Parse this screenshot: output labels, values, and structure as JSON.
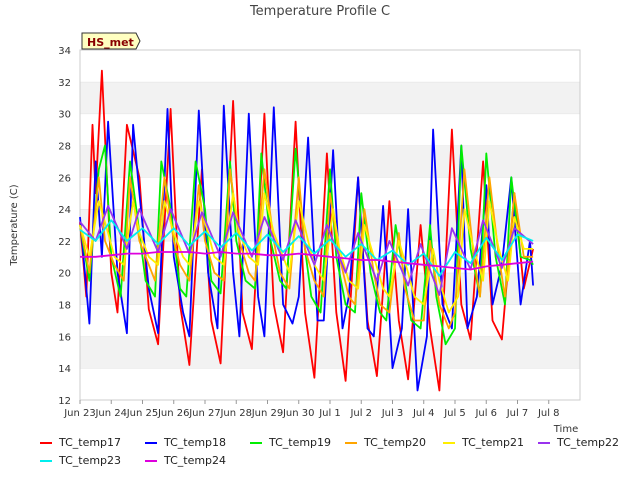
{
  "chart_data": {
    "type": "line",
    "title": "Temperature Profile C",
    "ylabel": "Temperature (C)",
    "xlabel": "Time",
    "badge": "HS_met",
    "ylim": [
      12,
      34
    ],
    "yticks": [
      12,
      14,
      16,
      18,
      20,
      22,
      24,
      26,
      28,
      30,
      32,
      34
    ],
    "xlim": [
      0,
      16
    ],
    "xtick_labels": [
      "Jun 23",
      "Jun 24",
      "Jun 25",
      "Jun 26",
      "Jun 27",
      "Jun 28",
      "Jun 29",
      "Jun 30",
      "Jul 1",
      "Jul 2",
      "Jul 3",
      "Jul 4",
      "Jul 5",
      "Jul 6",
      "Jul 7",
      "Jul 8"
    ],
    "grid": "horizontal bands",
    "legend_position": "bottom",
    "series": [
      {
        "name": "TC_temp17",
        "color": "#ff0000",
        "x": [
          0.0,
          0.2,
          0.4,
          0.5,
          0.7,
          1.0,
          1.2,
          1.5,
          1.9,
          2.2,
          2.5,
          2.9,
          3.2,
          3.5,
          3.9,
          4.2,
          4.5,
          4.9,
          5.2,
          5.5,
          5.9,
          6.2,
          6.5,
          6.9,
          7.2,
          7.5,
          7.9,
          8.2,
          8.5,
          8.9,
          9.2,
          9.5,
          9.9,
          10.2,
          10.5,
          10.9,
          11.2,
          11.5,
          11.9,
          12.2,
          12.5,
          12.9,
          13.2,
          13.5,
          13.9,
          14.2,
          14.5
        ],
        "values": [
          23.2,
          18.5,
          29.3,
          25,
          32.7,
          20,
          17.5,
          29.3,
          26,
          17.7,
          15.5,
          30.3,
          18,
          14.2,
          26.5,
          17,
          14.3,
          30.8,
          17.5,
          15.2,
          30,
          18,
          15,
          29.5,
          17.5,
          13.4,
          27.5,
          17.5,
          13.2,
          26,
          17,
          13.5,
          24.5,
          17,
          13.3,
          23,
          16.5,
          12.6,
          29,
          18,
          15.8,
          27,
          17,
          15.8,
          25,
          19,
          21.5
        ]
      },
      {
        "name": "TC_temp18",
        "color": "#0000ff",
        "x": [
          0.0,
          0.3,
          0.5,
          0.7,
          0.9,
          1.2,
          1.5,
          1.7,
          1.9,
          2.2,
          2.5,
          2.8,
          3.0,
          3.3,
          3.5,
          3.8,
          4.1,
          4.4,
          4.6,
          4.9,
          5.1,
          5.4,
          5.7,
          5.9,
          6.2,
          6.5,
          6.8,
          7.0,
          7.3,
          7.6,
          7.8,
          8.1,
          8.4,
          8.6,
          8.9,
          9.2,
          9.4,
          9.7,
          10.0,
          10.3,
          10.5,
          10.8,
          11.1,
          11.3,
          11.6,
          11.9,
          12.2,
          12.4,
          12.7,
          13.0,
          13.2,
          13.5,
          13.8,
          14.1,
          14.4,
          14.5
        ],
        "values": [
          23.5,
          16.8,
          27,
          21,
          29.5,
          20,
          16.2,
          29.3,
          25,
          19,
          16.2,
          30.3,
          21,
          17.5,
          16,
          30.2,
          20,
          16.5,
          30.5,
          20,
          16,
          30,
          18.5,
          16,
          30.4,
          18,
          16.8,
          18.5,
          28.5,
          17,
          17,
          27.7,
          16.5,
          18.5,
          26,
          16.5,
          16,
          24.2,
          14,
          16.5,
          24,
          12.6,
          16,
          29,
          18,
          16.5,
          28,
          16.5,
          18.5,
          25.5,
          18,
          20.5,
          26,
          18,
          22,
          19.2
        ]
      },
      {
        "name": "TC_temp19",
        "color": "#00ee00",
        "x": [
          0.0,
          0.3,
          0.6,
          0.8,
          1.0,
          1.3,
          1.6,
          1.8,
          2.1,
          2.4,
          2.6,
          2.9,
          3.2,
          3.4,
          3.7,
          4.0,
          4.2,
          4.5,
          4.8,
          5.0,
          5.3,
          5.6,
          5.8,
          6.1,
          6.4,
          6.6,
          6.9,
          7.2,
          7.4,
          7.7,
          8.0,
          8.2,
          8.5,
          8.8,
          9.0,
          9.3,
          9.6,
          9.8,
          10.1,
          10.4,
          10.6,
          10.9,
          11.2,
          11.4,
          11.7,
          12.0,
          12.2,
          12.5,
          12.8,
          13.0,
          13.3,
          13.6,
          13.8,
          14.1,
          14.4,
          14.5
        ],
        "values": [
          23,
          19.5,
          26.5,
          28,
          21,
          18.5,
          27,
          24,
          19.5,
          18.5,
          27,
          24,
          19,
          18.5,
          27,
          24,
          19.5,
          18.7,
          27,
          22,
          19.5,
          19,
          27.5,
          22,
          19.5,
          19,
          27.8,
          21.5,
          18.5,
          17.5,
          26.5,
          21,
          18,
          17.5,
          25,
          20,
          17.5,
          17,
          23,
          19.5,
          17,
          16.5,
          23,
          18.5,
          15.5,
          16.5,
          28,
          21.5,
          18.5,
          27.5,
          21,
          18,
          26,
          21,
          20.8,
          20.5
        ]
      },
      {
        "name": "TC_temp20",
        "color": "#ffa500",
        "x": [
          0.0,
          0.3,
          0.6,
          0.8,
          1.1,
          1.4,
          1.6,
          1.9,
          2.2,
          2.4,
          2.7,
          3.0,
          3.2,
          3.5,
          3.8,
          4.0,
          4.3,
          4.6,
          4.8,
          5.1,
          5.4,
          5.6,
          5.9,
          6.2,
          6.4,
          6.7,
          7.0,
          7.2,
          7.5,
          7.8,
          8.0,
          8.3,
          8.6,
          8.8,
          9.1,
          9.4,
          9.6,
          9.9,
          10.2,
          10.4,
          10.7,
          11.0,
          11.2,
          11.5,
          11.8,
          12.0,
          12.3,
          12.6,
          12.8,
          13.1,
          13.4,
          13.6,
          13.9,
          14.2,
          14.5
        ],
        "values": [
          23,
          20,
          26,
          22,
          20.5,
          19.5,
          26,
          22,
          20.5,
          19.5,
          26,
          22,
          20.5,
          19.5,
          25.5,
          22,
          20,
          19.5,
          26.5,
          22,
          20,
          19.5,
          26.5,
          22,
          20,
          19,
          26,
          21.5,
          19.5,
          18.5,
          25,
          21,
          18.5,
          18,
          24,
          20,
          18,
          17.5,
          22.5,
          19,
          17,
          17,
          22,
          18,
          16.5,
          17.5,
          26.5,
          21,
          18.5,
          26,
          21,
          18.5,
          25,
          21,
          21
        ]
      },
      {
        "name": "TC_temp21",
        "color": "#ffee00",
        "x": [
          0.0,
          0.3,
          0.6,
          0.9,
          1.1,
          1.4,
          1.7,
          1.9,
          2.2,
          2.5,
          2.7,
          3.0,
          3.3,
          3.5,
          3.8,
          4.1,
          4.3,
          4.6,
          4.9,
          5.1,
          5.4,
          5.7,
          5.9,
          6.2,
          6.5,
          6.7,
          7.0,
          7.3,
          7.5,
          7.8,
          8.1,
          8.3,
          8.6,
          8.9,
          9.1,
          9.4,
          9.7,
          9.9,
          10.2,
          10.5,
          10.7,
          11.0,
          11.3,
          11.5,
          11.8,
          12.1,
          12.3,
          12.6,
          12.9,
          13.1,
          13.4,
          13.7,
          13.9,
          14.2,
          14.5
        ],
        "values": [
          23,
          21,
          24.5,
          22.5,
          21,
          20.5,
          24.5,
          22.5,
          21,
          20.5,
          24.5,
          22.5,
          21,
          20.5,
          24.5,
          22.5,
          21,
          20.5,
          25,
          22.5,
          21,
          20.5,
          25,
          22.5,
          21,
          20,
          24.5,
          22,
          20.5,
          19.5,
          24,
          21.5,
          19.5,
          19,
          23,
          21,
          19,
          18.5,
          22,
          20,
          18.5,
          18,
          21.5,
          19.5,
          17.5,
          18.5,
          24,
          21.5,
          19.5,
          24.5,
          21.5,
          19.5,
          23.5,
          21.5,
          21.5
        ]
      },
      {
        "name": "TC_temp22",
        "color": "#9933ee",
        "x": [
          0.0,
          0.5,
          0.9,
          1.5,
          1.9,
          2.5,
          2.9,
          3.5,
          3.9,
          4.5,
          4.9,
          5.5,
          5.9,
          6.5,
          6.9,
          7.5,
          7.9,
          8.5,
          8.9,
          9.5,
          9.9,
          10.5,
          10.9,
          11.5,
          11.9,
          12.5,
          12.9,
          13.5,
          13.9,
          14.5
        ],
        "values": [
          23.2,
          22,
          24.2,
          21.5,
          24,
          21.3,
          24,
          21.2,
          23.8,
          21,
          23.8,
          21,
          23.5,
          20.8,
          23.3,
          20.5,
          23,
          20,
          22.5,
          19.5,
          22,
          19.2,
          21.8,
          18.6,
          22.8,
          20.2,
          23.3,
          20.3,
          22.8,
          21.8
        ]
      },
      {
        "name": "TC_temp23",
        "color": "#00eeee",
        "x": [
          0.0,
          0.5,
          1.0,
          1.5,
          2.0,
          2.5,
          3.0,
          3.5,
          4.0,
          4.5,
          5.0,
          5.5,
          6.0,
          6.5,
          7.0,
          7.5,
          8.0,
          8.5,
          9.0,
          9.5,
          10.0,
          10.5,
          11.0,
          11.5,
          12.0,
          12.5,
          13.0,
          13.5,
          14.0,
          14.5
        ],
        "values": [
          22.7,
          22,
          23.3,
          22,
          22.8,
          21.8,
          22.8,
          21.7,
          22.6,
          21.6,
          22.5,
          21.4,
          22.4,
          21.3,
          22.3,
          21.2,
          22.1,
          21,
          21.8,
          20.8,
          21.4,
          20.5,
          21.2,
          19.8,
          21.3,
          20.6,
          22.2,
          20.8,
          22.4,
          22
        ]
      },
      {
        "name": "TC_temp24",
        "color": "#dd00dd",
        "x": [
          0.0,
          0.5,
          1.0,
          1.5,
          2.0,
          2.5,
          3.0,
          3.5,
          4.0,
          4.5,
          5.0,
          5.5,
          6.0,
          6.5,
          7.0,
          7.5,
          8.0,
          8.5,
          9.0,
          9.5,
          10.0,
          10.5,
          11.0,
          11.5,
          12.0,
          12.5,
          13.0,
          13.5,
          14.0,
          14.5
        ],
        "values": [
          21,
          21,
          21.1,
          21.2,
          21.2,
          21.3,
          21.3,
          21.3,
          21.2,
          21.3,
          21.2,
          21.2,
          21.1,
          21.1,
          21.2,
          21.1,
          21,
          20.9,
          20.8,
          20.8,
          20.7,
          20.6,
          20.5,
          20.4,
          20.3,
          20.2,
          20.4,
          20.5,
          20.6,
          20.7
        ]
      }
    ]
  }
}
